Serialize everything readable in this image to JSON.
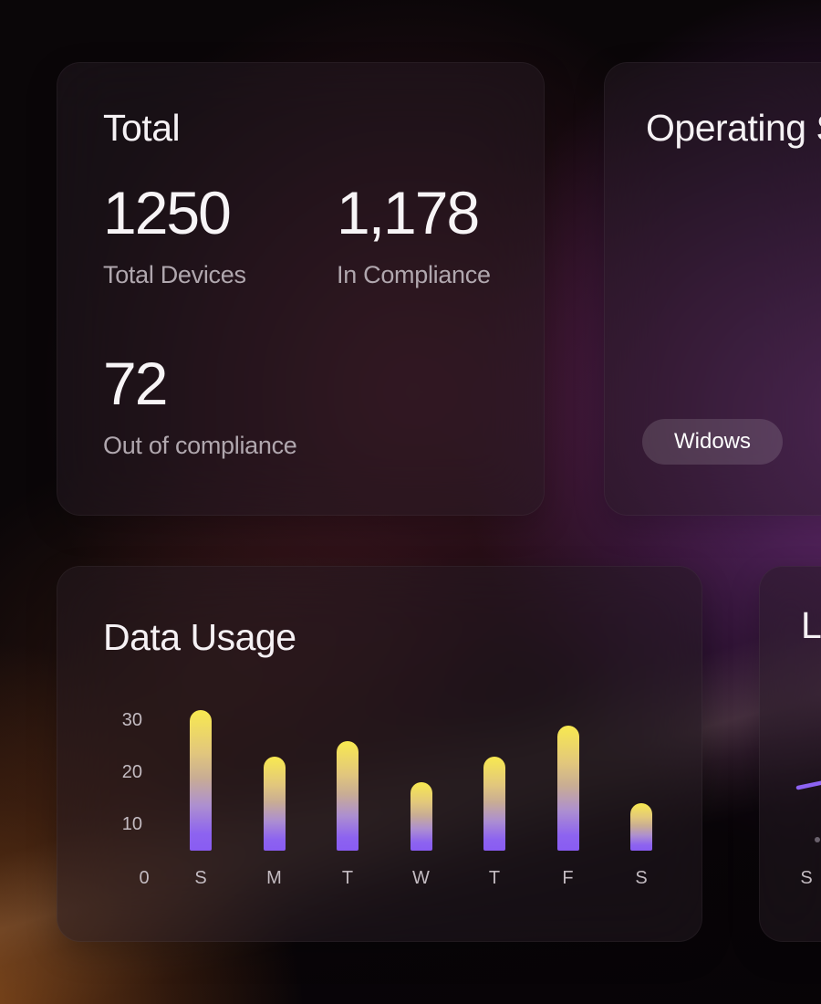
{
  "cards": {
    "total": {
      "title": "Total",
      "metrics": [
        {
          "value": "1250",
          "label": "Total Devices"
        },
        {
          "value": "1,178",
          "label": "In Compliance"
        },
        {
          "value": "72",
          "label": "Out of compliance"
        }
      ]
    },
    "operating_system": {
      "title": "Operating S",
      "badges": [
        {
          "label": "Widows"
        }
      ]
    },
    "data_usage": {
      "title": "Data Usage"
    },
    "partial_right": {
      "title": "La",
      "x_label": "S"
    }
  },
  "chart_data": {
    "type": "bar",
    "title": "Data Usage",
    "categories": [
      "S",
      "M",
      "T",
      "W",
      "T",
      "F",
      "S"
    ],
    "values": [
      32,
      23,
      26,
      18,
      23,
      29,
      14
    ],
    "y_ticks": [
      30,
      20,
      10
    ],
    "origin_label": "0",
    "ylim": [
      0,
      34
    ],
    "xlabel": "",
    "ylabel": "",
    "grid": false,
    "legend": "none",
    "bar_color_top": "#f8e950",
    "bar_color_bottom": "#895cf2"
  },
  "colors": {
    "accent_purple": "#8a5cf2",
    "accent_yellow": "#f8e950",
    "glow_purple": "#ac48c2",
    "glow_orange": "#ec8228",
    "title_text": "#f5f1f4",
    "muted_text": "#b0a7ae",
    "axis_text": "#c3bbc1"
  }
}
